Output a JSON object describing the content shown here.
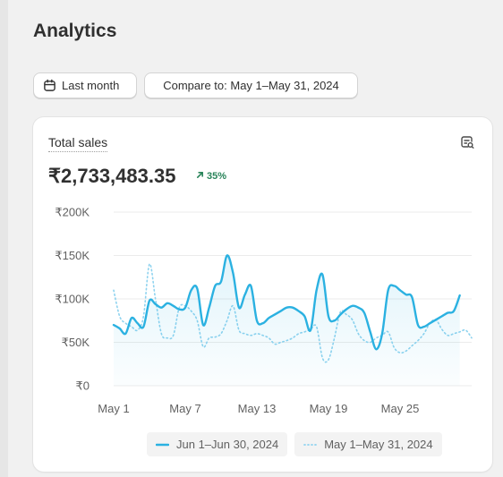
{
  "page": {
    "title": "Analytics"
  },
  "toolbar": {
    "date_button_label": "Last month",
    "compare_button_label": "Compare to: May 1–May 31, 2024"
  },
  "card": {
    "metric_label": "Total sales",
    "metric_value": "₹2,733,483.35",
    "change_value": "35%",
    "change_direction": "up",
    "change_color": "#29845a",
    "explore_icon": "search-chart-icon"
  },
  "chart_data": {
    "type": "line",
    "yticks": [
      "₹200K",
      "₹150K",
      "₹100K",
      "₹50K",
      "₹0"
    ],
    "ytick_values": [
      200000,
      150000,
      100000,
      50000,
      0
    ],
    "ylim": [
      0,
      200000
    ],
    "xticks": [
      "May 1",
      "May 7",
      "May 13",
      "May 19",
      "May 25"
    ],
    "xtick_positions": [
      1,
      7,
      13,
      19,
      25
    ],
    "xlim": [
      1,
      31
    ],
    "grid": true,
    "legend_placement": "bottom-right",
    "series": [
      {
        "name": "Jun 1–Jun 30, 2024",
        "color": "#2bb1e1",
        "style": "solid",
        "x": [
          1,
          1.5,
          2,
          2.5,
          3,
          3.5,
          4,
          4.5,
          5,
          5.5,
          6,
          6.5,
          7,
          7.5,
          8,
          8.5,
          9,
          9.5,
          10,
          10.5,
          11,
          11.5,
          12,
          12.5,
          13,
          13.5,
          14,
          14.5,
          15,
          15.5,
          16,
          16.5,
          17,
          17.5,
          18,
          18.5,
          19,
          19.5,
          20,
          20.5,
          21,
          21.5,
          22,
          22.5,
          23,
          23.5,
          24,
          24.5,
          25,
          25.5,
          26,
          26.5,
          27,
          27.5,
          28,
          28.5,
          29,
          29.5,
          30
        ],
        "values": [
          70000,
          66000,
          60000,
          78000,
          72000,
          68000,
          98000,
          94000,
          90000,
          95000,
          92000,
          88000,
          90000,
          110000,
          112000,
          70000,
          90000,
          115000,
          120000,
          150000,
          130000,
          90000,
          105000,
          115000,
          75000,
          72000,
          78000,
          82000,
          86000,
          90000,
          90000,
          86000,
          80000,
          64000,
          110000,
          128000,
          80000,
          75000,
          82000,
          88000,
          92000,
          90000,
          84000,
          62000,
          42000,
          60000,
          110000,
          115000,
          110000,
          105000,
          102000,
          70000,
          68000,
          72000,
          76000,
          80000,
          84000,
          86000,
          104000
        ]
      },
      {
        "name": "May 1–May 31, 2024",
        "color": "#8fd3ef",
        "style": "dotted",
        "x": [
          1,
          1.5,
          2,
          2.5,
          3,
          3.5,
          4,
          4.5,
          5,
          5.5,
          6,
          6.5,
          7,
          7.5,
          8,
          8.5,
          9,
          9.5,
          10,
          10.5,
          11,
          11.5,
          12,
          12.5,
          13,
          13.5,
          14,
          14.5,
          15,
          15.5,
          16,
          16.5,
          17,
          17.5,
          18,
          18.5,
          19,
          19.5,
          20,
          20.5,
          21,
          21.5,
          22,
          22.5,
          23,
          23.5,
          24,
          24.5,
          25,
          25.5,
          26,
          26.5,
          27,
          27.5,
          28,
          28.5,
          29,
          29.5,
          30,
          30.5,
          31
        ],
        "values": [
          110000,
          80000,
          72000,
          68000,
          64000,
          80000,
          140000,
          100000,
          60000,
          55000,
          58000,
          90000,
          92000,
          86000,
          75000,
          45000,
          55000,
          56000,
          60000,
          75000,
          92000,
          64000,
          60000,
          58000,
          60000,
          58000,
          55000,
          48000,
          50000,
          52000,
          55000,
          60000,
          62000,
          65000,
          68000,
          32000,
          30000,
          55000,
          85000,
          82000,
          76000,
          60000,
          52000,
          50000,
          55000,
          58000,
          62000,
          44000,
          38000,
          40000,
          46000,
          52000,
          60000,
          72000,
          76000,
          65000,
          58000,
          60000,
          62000,
          64000,
          55000
        ]
      }
    ]
  }
}
